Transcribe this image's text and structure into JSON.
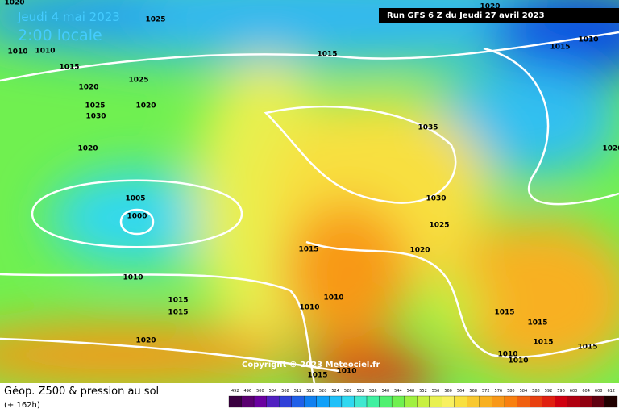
{
  "header": {
    "date": "Jeudi 4 mai 2023",
    "time": "2:00 locale",
    "run": "Run GFS 6 Z du Jeudi 27 avril 2023"
  },
  "copyright": "Copyright © 2023 Meteociel.fr",
  "footer": {
    "title": "Géop. Z500 & pression au sol",
    "lead": "(+ 162h)"
  },
  "legend": {
    "labels": [
      "492",
      "496",
      "500",
      "504",
      "508",
      "512",
      "516",
      "520",
      "524",
      "528",
      "532",
      "536",
      "540",
      "544",
      "548",
      "552",
      "556",
      "560",
      "564",
      "568",
      "572",
      "576",
      "580",
      "584",
      "588",
      "592",
      "596",
      "600",
      "604",
      "608",
      "612"
    ],
    "colors": [
      "#3a0040",
      "#5a0070",
      "#6a00a0",
      "#5020c0",
      "#3040d8",
      "#2060e8",
      "#1080f0",
      "#10a0f8",
      "#20c0f8",
      "#30d8f0",
      "#40e8d0",
      "#40f0a0",
      "#50f070",
      "#70f050",
      "#a0f040",
      "#c8f040",
      "#e8f050",
      "#f8f060",
      "#f8e040",
      "#f8c830",
      "#f8b020",
      "#f89818",
      "#f88010",
      "#f06010",
      "#e84010",
      "#e02010",
      "#d00010",
      "#b00010",
      "#900010",
      "#600010",
      "#200000"
    ]
  },
  "isobars": [
    "1025",
    "1010",
    "1010",
    "1015",
    "1015",
    "1015",
    "1010",
    "1020",
    "1025",
    "1025",
    "1030",
    "1020",
    "1020",
    "1035",
    "1020",
    "1005",
    "1000",
    "1030",
    "1025",
    "1015",
    "1020",
    "1010",
    "1015",
    "1015",
    "1010",
    "1010",
    "1015",
    "1015",
    "1020",
    "1015",
    "1015",
    "1010",
    "1010",
    "1010",
    "1015",
    "1020",
    "1020"
  ]
}
